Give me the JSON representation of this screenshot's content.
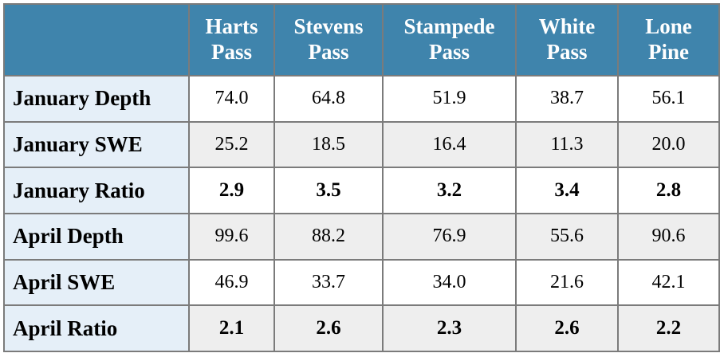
{
  "colors": {
    "header_bg": "#3f84ac",
    "header_text": "#ffffff",
    "label_bg": "#e5eff8",
    "stripe_bg": "#eeeeee",
    "cell_bg": "#ffffff",
    "border": "#7b7b7b",
    "text": "#000000",
    "page_bg": "#ffffff"
  },
  "chart_data": {
    "type": "table",
    "columns": [
      "",
      "Harts Pass",
      "Stevens Pass",
      "Stampede Pass",
      "White Pass",
      "Lone Pine"
    ],
    "rows": [
      {
        "label": "January Depth",
        "values": [
          74.0,
          64.8,
          51.9,
          38.7,
          56.1
        ],
        "display": [
          "74.0",
          "64.8",
          "51.9",
          "38.7",
          "56.1"
        ],
        "bold": false
      },
      {
        "label": "January SWE",
        "values": [
          25.2,
          18.5,
          16.4,
          11.3,
          20.0
        ],
        "display": [
          "25.2",
          "18.5",
          "16.4",
          "11.3",
          "20.0"
        ],
        "bold": false
      },
      {
        "label": "January Ratio",
        "values": [
          2.9,
          3.5,
          3.2,
          3.4,
          2.8
        ],
        "display": [
          "2.9",
          "3.5",
          "3.2",
          "3.4",
          "2.8"
        ],
        "bold": true
      },
      {
        "label": "April Depth",
        "values": [
          99.6,
          88.2,
          76.9,
          55.6,
          90.6
        ],
        "display": [
          "99.6",
          "88.2",
          "76.9",
          "55.6",
          "90.6"
        ],
        "bold": false
      },
      {
        "label": "April SWE",
        "values": [
          46.9,
          33.7,
          34.0,
          21.6,
          42.1
        ],
        "display": [
          "46.9",
          "33.7",
          "34.0",
          "21.6",
          "42.1"
        ],
        "bold": false
      },
      {
        "label": "April Ratio",
        "values": [
          2.1,
          2.6,
          2.3,
          2.6,
          2.2
        ],
        "display": [
          "2.1",
          "2.6",
          "2.3",
          "2.6",
          "2.2"
        ],
        "bold": true
      }
    ]
  }
}
